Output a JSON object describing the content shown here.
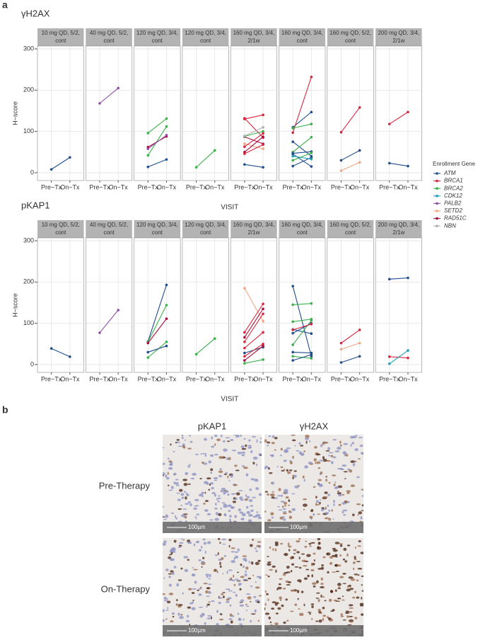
{
  "panel_labels": [
    "a",
    "b"
  ],
  "chart_data": [
    {
      "type": "line",
      "title": "γH2AX",
      "ylabel": "H−score",
      "xlabel": "VISIT",
      "categories": [
        "Pre−Tx",
        "On−Tx"
      ],
      "ylim": [
        -19,
        307
      ],
      "yticks": [
        0,
        100,
        200,
        300
      ],
      "grid": true,
      "facets": [
        {
          "label": [
            "10 mg QD, 5/2,",
            "cont"
          ],
          "series": [
            {
              "color": "#1f4e8c",
              "values": [
                8,
                37
              ]
            }
          ]
        },
        {
          "label": [
            "40 mg QD, 5/2,",
            "cont"
          ],
          "series": [
            {
              "color": "#8e4fa3",
              "values": [
                168,
                205
              ]
            }
          ]
        },
        {
          "label": [
            "120 mg QD, 3/4,",
            "cont"
          ],
          "series": [
            {
              "color": "#3cb04a",
              "values": [
                96,
                131
              ]
            },
            {
              "color": "#3cb04a",
              "values": [
                42,
                112
              ]
            },
            {
              "color": "#a50f3c",
              "values": [
                62,
                88
              ]
            },
            {
              "color": "#8e4fa3",
              "values": [
                58,
                91
              ]
            },
            {
              "color": "#1f4e8c",
              "values": [
                14,
                32
              ]
            }
          ]
        },
        {
          "label": [
            "120 mg QD, 3/4,",
            "cont"
          ],
          "series": [
            {
              "color": "#3cb04a",
              "values": [
                13,
                54
              ]
            }
          ]
        },
        {
          "label": [
            "160 mg QD, 3/4,",
            "2/1w"
          ],
          "series": [
            {
              "color": "#d7263d",
              "values": [
                130,
                140
              ]
            },
            {
              "color": "#d7263d",
              "values": [
                132,
                85
              ]
            },
            {
              "color": "#a50f3c",
              "values": [
                87,
                70
              ]
            },
            {
              "color": "#3cb04a",
              "values": [
                88,
                100
              ]
            },
            {
              "color": "#b0b0b0",
              "values": [
                89,
                110
              ]
            },
            {
              "color": "#f4a582",
              "values": [
                70,
                58
              ]
            },
            {
              "color": "#d7263d",
              "values": [
                63,
                95
              ]
            },
            {
              "color": "#a50f3c",
              "values": [
                50,
                87
              ]
            },
            {
              "color": "#d7263d",
              "values": [
                46,
                68
              ]
            },
            {
              "color": "#1f4e8c",
              "values": [
                20,
                13
              ]
            }
          ]
        },
        {
          "label": [
            "160 mg QD, 3/4,",
            "cont"
          ],
          "series": [
            {
              "color": "#1f4e8c",
              "values": [
                110,
                147
              ]
            },
            {
              "color": "#d7263d",
              "values": [
                97,
                232
              ]
            },
            {
              "color": "#3cb04a",
              "values": [
                108,
                118
              ]
            },
            {
              "color": "#1f4e8c",
              "values": [
                75,
                40
              ]
            },
            {
              "color": "#3cb04a",
              "values": [
                50,
                86
              ]
            },
            {
              "color": "#1f4e8c",
              "values": [
                47,
                51
              ]
            },
            {
              "color": "#1f4e8c",
              "values": [
                45,
                15
              ]
            },
            {
              "color": "#3cb04a",
              "values": [
                30,
                48
              ]
            },
            {
              "color": "#1f4e8c",
              "values": [
                16,
                37
              ]
            },
            {
              "color": "#1aa3b5",
              "values": [
                40,
                33
              ]
            }
          ]
        },
        {
          "label": [
            "160 mg QD, 5/2,",
            "cont"
          ],
          "series": [
            {
              "color": "#d7263d",
              "values": [
                98,
                158
              ]
            },
            {
              "color": "#1f4e8c",
              "values": [
                30,
                54
              ]
            },
            {
              "color": "#f4a582",
              "values": [
                5,
                25
              ]
            }
          ]
        },
        {
          "label": [
            "200 mg QD, 3/4,",
            "2/1w"
          ],
          "series": [
            {
              "color": "#d7263d",
              "values": [
                118,
                147
              ]
            },
            {
              "color": "#1f4e8c",
              "values": [
                23,
                16
              ]
            }
          ]
        }
      ]
    },
    {
      "type": "line",
      "title": "pKAP1",
      "ylabel": "H−score",
      "xlabel": "VISIT",
      "categories": [
        "Pre−Tx",
        "On−Tx"
      ],
      "ylim": [
        -19,
        307
      ],
      "yticks": [
        0,
        100,
        200,
        300
      ],
      "grid": true,
      "legend": {
        "title": "Enrollment Gene",
        "entries": [
          {
            "name": "ATM",
            "color": "#1f4e8c"
          },
          {
            "name": "BRCA1",
            "color": "#d7263d"
          },
          {
            "name": "BRCA2",
            "color": "#3cb04a"
          },
          {
            "name": "CDK12",
            "color": "#1aa3b5"
          },
          {
            "name": "PALB2",
            "color": "#8e4fa3"
          },
          {
            "name": "SETD2",
            "color": "#f4a582"
          },
          {
            "name": "RAD51C",
            "color": "#a50f3c"
          },
          {
            "name": "NBN",
            "color": "#b0b0b0"
          }
        ]
      },
      "facets": [
        {
          "label": [
            "10 mg QD, 5/2,",
            "cont"
          ],
          "series": [
            {
              "color": "#1f4e8c",
              "values": [
                39,
                19
              ]
            }
          ]
        },
        {
          "label": [
            "40 mg QD, 5/2,",
            "cont"
          ],
          "series": [
            {
              "color": "#8e4fa3",
              "values": [
                77,
                132
              ]
            }
          ]
        },
        {
          "label": [
            "120 mg QD, 3/4,",
            "cont"
          ],
          "series": [
            {
              "color": "#1f4e8c",
              "values": [
                56,
                193
              ]
            },
            {
              "color": "#3cb04a",
              "values": [
                55,
                144
              ]
            },
            {
              "color": "#a50f3c",
              "values": [
                52,
                111
              ]
            },
            {
              "color": "#3cb04a",
              "values": [
                17,
                55
              ]
            },
            {
              "color": "#1f4e8c",
              "values": [
                30,
                45
              ]
            }
          ]
        },
        {
          "label": [
            "120 mg QD, 3/4,",
            "cont"
          ],
          "series": [
            {
              "color": "#3cb04a",
              "values": [
                25,
                63
              ]
            }
          ]
        },
        {
          "label": [
            "160 mg QD, 3/4,",
            "2/1w"
          ],
          "series": [
            {
              "color": "#f4a582",
              "values": [
                185,
                105
              ]
            },
            {
              "color": "#d7263d",
              "values": [
                78,
                147
              ]
            },
            {
              "color": "#a50f3c",
              "values": [
                66,
                135
              ]
            },
            {
              "color": "#d7263d",
              "values": [
                55,
                123
              ]
            },
            {
              "color": "#1f4e8c",
              "values": [
                28,
                42
              ]
            },
            {
              "color": "#d7263d",
              "values": [
                40,
                78
              ]
            },
            {
              "color": "#d7263d",
              "values": [
                20,
                50
              ]
            },
            {
              "color": "#a50f3c",
              "values": [
                10,
                45
              ]
            },
            {
              "color": "#3cb04a",
              "values": [
                3,
                12
              ]
            }
          ]
        },
        {
          "label": [
            "160 mg QD, 3/4,",
            "cont"
          ],
          "series": [
            {
              "color": "#1f4e8c",
              "values": [
                190,
                20
              ]
            },
            {
              "color": "#3cb04a",
              "values": [
                145,
                148
              ]
            },
            {
              "color": "#1f4e8c",
              "values": [
                85,
                75
              ]
            },
            {
              "color": "#3cb04a",
              "values": [
                104,
                110
              ]
            },
            {
              "color": "#3cb04a",
              "values": [
                48,
                107
              ]
            },
            {
              "color": "#1f4e8c",
              "values": [
                76,
                100
              ]
            },
            {
              "color": "#1f4e8c",
              "values": [
                30,
                28
              ]
            },
            {
              "color": "#3cb04a",
              "values": [
                20,
                15
              ]
            },
            {
              "color": "#1f4e8c",
              "values": [
                10,
                24
              ]
            },
            {
              "color": "#d7263d",
              "values": [
                84,
                98
              ]
            }
          ]
        },
        {
          "label": [
            "160 mg QD, 5/2,",
            "cont"
          ],
          "series": [
            {
              "color": "#d7263d",
              "values": [
                52,
                84
              ]
            },
            {
              "color": "#f4a582",
              "values": [
                37,
                52
              ]
            },
            {
              "color": "#1f4e8c",
              "values": [
                5,
                20
              ]
            }
          ]
        },
        {
          "label": [
            "200 mg QD, 3/4,",
            "2/1w"
          ],
          "series": [
            {
              "color": "#1f4e8c",
              "values": [
                207,
                210
              ]
            },
            {
              "color": "#d7263d",
              "values": [
                19,
                16
              ]
            },
            {
              "color": "#1aa3b5",
              "values": [
                2,
                34
              ]
            }
          ]
        }
      ]
    }
  ],
  "panel_b": {
    "columns": [
      "pKAP1",
      "γH2AX"
    ],
    "rows": [
      "Pre-Therapy",
      "On-Therapy"
    ],
    "scale_bar": "100µm"
  }
}
